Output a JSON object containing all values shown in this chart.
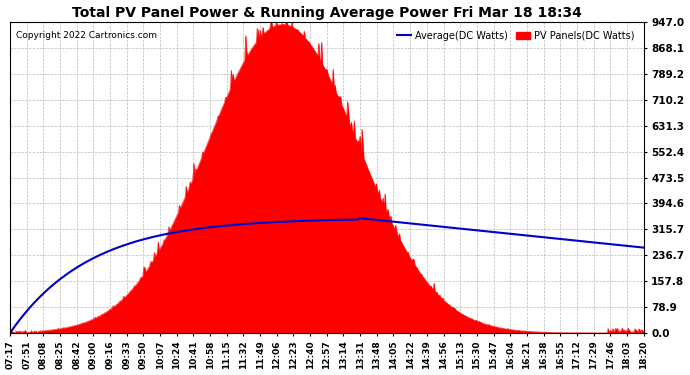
{
  "title": "Total PV Panel Power & Running Average Power Fri Mar 18 18:34",
  "copyright": "Copyright 2022 Cartronics.com",
  "legend_avg": "Average(DC Watts)",
  "legend_pv": "PV Panels(DC Watts)",
  "ylim": [
    0,
    947.0
  ],
  "yticks": [
    0.0,
    78.9,
    157.8,
    236.7,
    315.7,
    394.6,
    473.5,
    552.4,
    631.3,
    710.2,
    789.2,
    868.1,
    947.0
  ],
  "ytick_labels": [
    "0.0",
    "78.9",
    "157.8",
    "236.7",
    "315.7",
    "394.6",
    "473.5",
    "552.4",
    "631.3",
    "710.2",
    "789.2",
    "868.1",
    "947.0"
  ],
  "xtick_labels": [
    "07:17",
    "07:51",
    "08:08",
    "08:25",
    "08:42",
    "09:00",
    "09:16",
    "09:33",
    "09:50",
    "10:07",
    "10:24",
    "10:41",
    "10:58",
    "11:15",
    "11:32",
    "11:49",
    "12:06",
    "12:23",
    "12:40",
    "12:57",
    "13:14",
    "13:31",
    "13:48",
    "14:05",
    "14:22",
    "14:39",
    "14:56",
    "15:13",
    "15:30",
    "15:47",
    "16:04",
    "16:21",
    "16:38",
    "16:55",
    "17:12",
    "17:29",
    "17:46",
    "18:03",
    "18:20"
  ],
  "background_color": "#ffffff",
  "pv_color": "#ff0000",
  "avg_color": "#0000cc",
  "title_color": "#000000",
  "copyright_color": "#000000",
  "legend_avg_color": "#0000cc",
  "legend_pv_color": "#ff0000",
  "grid_color": "#bbbbbb"
}
